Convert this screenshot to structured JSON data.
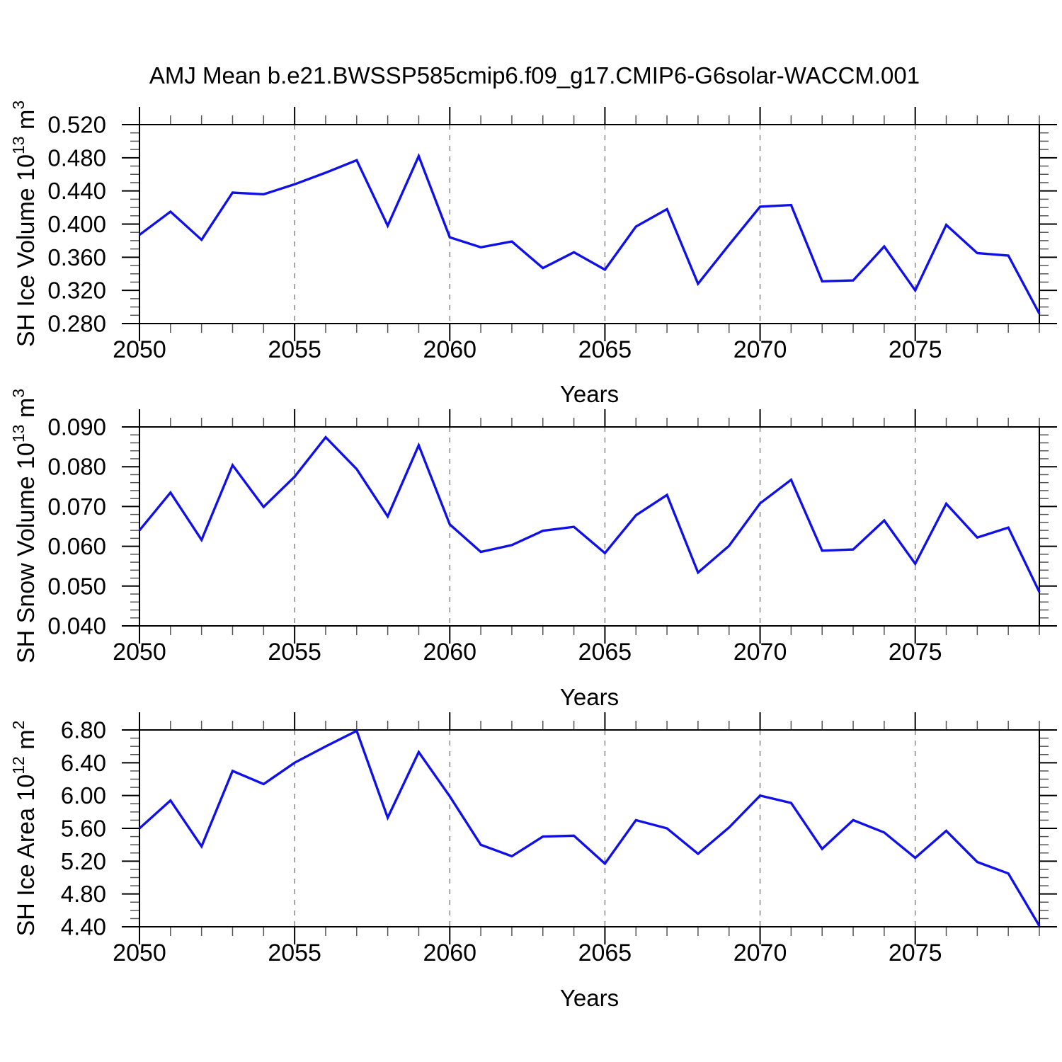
{
  "title": "AMJ Mean b.e21.BWSSP585cmip6.f09_g17.CMIP6-G6solar-WACCM.001",
  "colors": {
    "line": "#1010e8",
    "grid": "#888888",
    "frame": "#000000",
    "major_tick": "#000000",
    "minor_tick": "#555555",
    "background": "#ffffff"
  },
  "chart_data": [
    {
      "type": "line",
      "name": "sh-ice-volume",
      "ylabel_parts": {
        "base": "SH Ice Volume 10",
        "exp": "13",
        "unit": " m",
        "unit_exp": "3"
      },
      "xlabel": "Years",
      "x": [
        2050,
        2051,
        2052,
        2053,
        2054,
        2055,
        2056,
        2057,
        2058,
        2059,
        2060,
        2061,
        2062,
        2063,
        2064,
        2065,
        2066,
        2067,
        2068,
        2069,
        2070,
        2071,
        2072,
        2073,
        2074,
        2075,
        2076,
        2077,
        2078,
        2079
      ],
      "values": [
        0.387,
        0.415,
        0.381,
        0.438,
        0.436,
        0.448,
        0.462,
        0.477,
        0.398,
        0.482,
        0.384,
        0.372,
        0.379,
        0.347,
        0.366,
        0.345,
        0.397,
        0.418,
        0.328,
        0.375,
        0.421,
        0.423,
        0.331,
        0.332,
        0.373,
        0.32,
        0.399,
        0.365,
        0.362,
        0.292
      ],
      "ylim": [
        0.28,
        0.52
      ],
      "ytick_major_step": 0.04,
      "ytick_minor_step": 0.01,
      "ytick_labels": [
        "0.280",
        "0.320",
        "0.360",
        "0.400",
        "0.440",
        "0.480",
        "0.520"
      ],
      "xlim": [
        2050,
        2079
      ],
      "xtick_major_step": 5,
      "xtick_minor_step": 1,
      "xtick_labels": [
        "2050",
        "2055",
        "2060",
        "2065",
        "2070",
        "2075"
      ],
      "grid_x": [
        2055,
        2060,
        2065,
        2070,
        2075
      ],
      "grid_on": true,
      "legend": "none"
    },
    {
      "type": "line",
      "name": "sh-snow-volume",
      "ylabel_parts": {
        "base": "SH Snow Volume 10",
        "exp": "13",
        "unit": " m",
        "unit_exp": "3"
      },
      "xlabel": "Years",
      "x": [
        2050,
        2051,
        2052,
        2053,
        2054,
        2055,
        2056,
        2057,
        2058,
        2059,
        2060,
        2061,
        2062,
        2063,
        2064,
        2065,
        2066,
        2067,
        2068,
        2069,
        2070,
        2071,
        2072,
        2073,
        2074,
        2075,
        2076,
        2077,
        2078,
        2079
      ],
      "values": [
        0.064,
        0.0735,
        0.0616,
        0.0804,
        0.0699,
        0.0775,
        0.0874,
        0.0794,
        0.0675,
        0.0854,
        0.0655,
        0.0586,
        0.0603,
        0.0639,
        0.0649,
        0.0583,
        0.0678,
        0.0729,
        0.0534,
        0.0601,
        0.0708,
        0.0767,
        0.0589,
        0.0592,
        0.0665,
        0.0556,
        0.0707,
        0.0622,
        0.0647,
        0.0485
      ],
      "ylim": [
        0.04,
        0.09
      ],
      "ytick_major_step": 0.01,
      "ytick_minor_step": 0.002,
      "ytick_labels": [
        "0.040",
        "0.050",
        "0.060",
        "0.070",
        "0.080",
        "0.090"
      ],
      "xlim": [
        2050,
        2079
      ],
      "xtick_major_step": 5,
      "xtick_minor_step": 1,
      "xtick_labels": [
        "2050",
        "2055",
        "2060",
        "2065",
        "2070",
        "2075"
      ],
      "grid_x": [
        2055,
        2060,
        2065,
        2070,
        2075
      ],
      "grid_on": true,
      "legend": "none"
    },
    {
      "type": "line",
      "name": "sh-ice-area",
      "ylabel_parts": {
        "base": "SH Ice Area 10",
        "exp": "12",
        "unit": " m",
        "unit_exp": "2"
      },
      "xlabel": "Years",
      "x": [
        2050,
        2051,
        2052,
        2053,
        2054,
        2055,
        2056,
        2057,
        2058,
        2059,
        2060,
        2061,
        2062,
        2063,
        2064,
        2065,
        2066,
        2067,
        2068,
        2069,
        2070,
        2071,
        2072,
        2073,
        2074,
        2075,
        2076,
        2077,
        2078,
        2079
      ],
      "values": [
        5.6,
        5.94,
        5.38,
        6.3,
        6.14,
        6.4,
        6.6,
        6.79,
        5.73,
        6.53,
        5.99,
        5.4,
        5.26,
        5.5,
        5.51,
        5.17,
        5.7,
        5.6,
        5.29,
        5.61,
        6.0,
        5.91,
        5.35,
        5.7,
        5.55,
        5.24,
        5.57,
        5.19,
        5.05,
        4.41
      ],
      "ylim": [
        4.4,
        6.8
      ],
      "ytick_major_step": 0.4,
      "ytick_minor_step": 0.1,
      "ytick_labels": [
        "4.40",
        "4.80",
        "5.20",
        "5.60",
        "6.00",
        "6.40",
        "6.80"
      ],
      "xlim": [
        2050,
        2079
      ],
      "xtick_major_step": 5,
      "xtick_minor_step": 1,
      "xtick_labels": [
        "2050",
        "2055",
        "2060",
        "2065",
        "2070",
        "2075"
      ],
      "grid_x": [
        2055,
        2060,
        2065,
        2070,
        2075
      ],
      "grid_on": true,
      "legend": "none"
    }
  ]
}
